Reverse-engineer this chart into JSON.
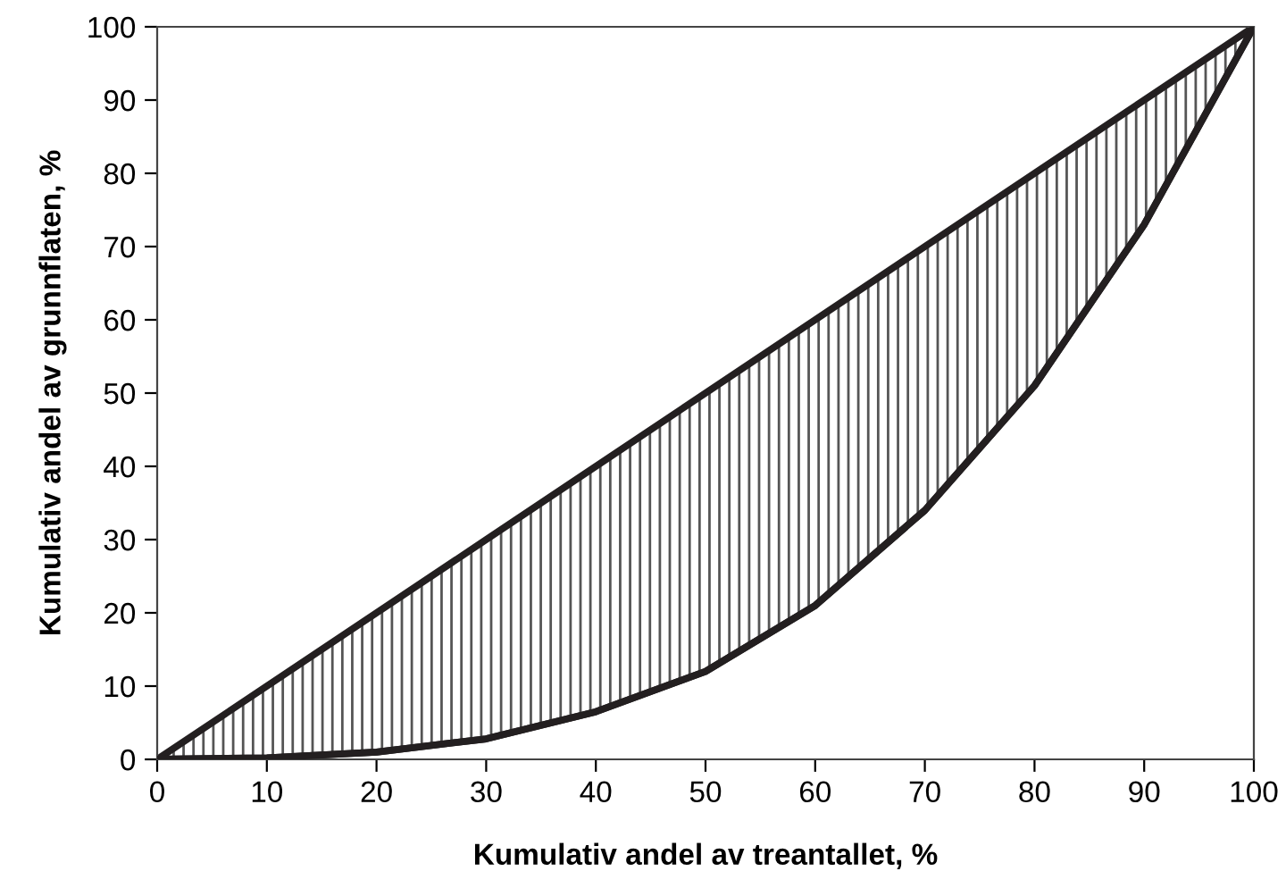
{
  "chart_data": {
    "type": "line",
    "xlabel": "Kumulativ andel av treantallet, %",
    "ylabel": "Kumulativ andel av grunnflaten, %",
    "x": [
      0,
      10,
      20,
      30,
      40,
      50,
      60,
      70,
      80,
      90,
      100
    ],
    "series": [
      {
        "color": "#231f20",
        "values": [
          0,
          0.2,
          1,
          2.8,
          6.5,
          12,
          21,
          34,
          51,
          73,
          100
        ],
        "lower": [
          0,
          0.2,
          1,
          2.8,
          6.5,
          12,
          21,
          34,
          51,
          73,
          100
        ],
        "upper": [
          0,
          10,
          20,
          30,
          40,
          50,
          60,
          70,
          80,
          90,
          100
        ]
      }
    ],
    "xlim": [
      0,
      100
    ],
    "ylim": [
      0,
      100
    ],
    "xticks": [
      0,
      10,
      20,
      30,
      40,
      50,
      60,
      70,
      80,
      90,
      100
    ],
    "yticks": [
      0,
      10,
      20,
      30,
      40,
      50,
      60,
      70,
      80,
      90,
      100
    ],
    "grid": false,
    "legend": false,
    "marker": "none",
    "line_style": "solid"
  }
}
